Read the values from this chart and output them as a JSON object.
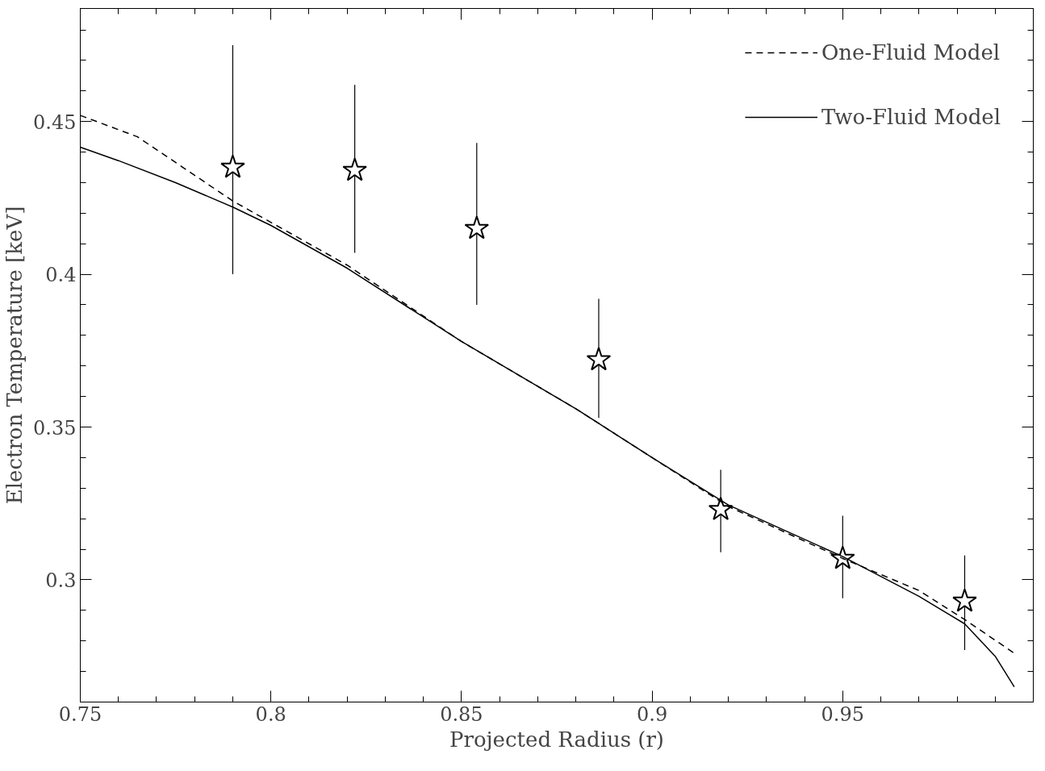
{
  "chart_data": {
    "type": "scatter",
    "xlabel": "Projected Radius (r)",
    "ylabel": "Electron Temperature [keV]",
    "xlim": [
      0.75,
      1.0
    ],
    "ylim": [
      0.26,
      0.487
    ],
    "xticks": [
      0.75,
      0.8,
      0.85,
      0.9,
      0.95
    ],
    "yticks": [
      0.3,
      0.35,
      0.4,
      0.45
    ],
    "grid": false,
    "legend": "top right",
    "series": [
      {
        "marker": "star",
        "color": "#000000",
        "x": [
          0.79,
          0.822,
          0.854,
          0.886,
          0.918,
          0.95,
          0.982
        ],
        "values": [
          0.435,
          0.434,
          0.415,
          0.372,
          0.323,
          0.307,
          0.293
        ],
        "errors": [
          [
            0.4,
            0.475
          ],
          [
            0.407,
            0.462
          ],
          [
            0.39,
            0.443
          ],
          [
            0.353,
            0.392
          ],
          [
            0.309,
            0.336
          ],
          [
            0.294,
            0.321
          ],
          [
            0.277,
            0.308
          ]
        ]
      },
      {
        "type": "line",
        "name": "One-Fluid Model",
        "color": "#000000",
        "line_style": "dashed",
        "x": [
          0.75,
          0.765,
          0.79,
          0.82,
          0.85,
          0.88,
          0.9,
          0.92,
          0.95,
          0.97,
          0.982,
          0.995
        ],
        "values": [
          0.452,
          0.445,
          0.424,
          0.403,
          0.378,
          0.356,
          0.34,
          0.324,
          0.307,
          0.2965,
          0.287,
          0.276
        ]
      },
      {
        "type": "line",
        "name": "Two-Fluid Model",
        "color": "#000000",
        "line_style": "solid",
        "x": [
          0.75,
          0.76,
          0.775,
          0.79,
          0.8,
          0.82,
          0.85,
          0.88,
          0.9,
          0.92,
          0.95,
          0.97,
          0.982,
          0.99,
          0.995
        ],
        "values": [
          0.4416,
          0.4372,
          0.43,
          0.422,
          0.416,
          0.402,
          0.378,
          0.356,
          0.34,
          0.3245,
          0.3076,
          0.2946,
          0.2856,
          0.275,
          0.265
        ]
      }
    ]
  }
}
